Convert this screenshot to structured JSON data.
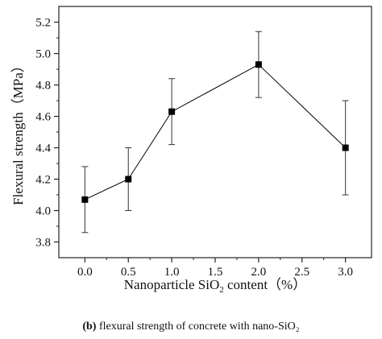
{
  "chart_data": {
    "type": "line",
    "title": "",
    "xlabel": {
      "prefix": "Nanoparticle SiO",
      "subscript": "2",
      "suffix": " content（%）"
    },
    "ylabel": "Flexural strength（MPa）",
    "xlim": [
      -0.3,
      3.3
    ],
    "ylim": [
      3.7,
      5.3
    ],
    "x_ticks": [
      "0.0",
      "0.5",
      "1.0",
      "1.5",
      "2.0",
      "2.5",
      "3.0"
    ],
    "y_ticks": [
      "3.8",
      "4.0",
      "4.2",
      "4.4",
      "4.6",
      "4.8",
      "5.0",
      "5.2"
    ],
    "grid": false,
    "series": [
      {
        "x": [
          0.0,
          0.5,
          1.0,
          2.0,
          3.0
        ],
        "y": [
          4.07,
          4.2,
          4.63,
          4.93,
          4.4
        ],
        "error": [
          0.21,
          0.2,
          0.21,
          0.21,
          0.3
        ],
        "color": "#000000",
        "marker": "square"
      }
    ]
  },
  "caption": {
    "label": "(b)",
    "text": " flexural strength of concrete with nano-SiO₂"
  }
}
